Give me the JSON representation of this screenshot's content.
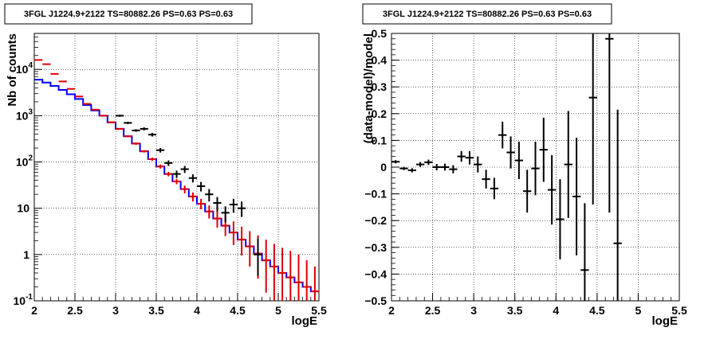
{
  "chart_data": [
    {
      "type": "line",
      "title": "3FGL J1224.9+2122 TS=80882.26 PS=0.63 PS=0.63",
      "xlabel": "logE",
      "ylabel": "Nb of counts",
      "xlim": [
        2,
        5.5
      ],
      "ylim": [
        0.1,
        60000
      ],
      "yscale": "log",
      "grid": true,
      "x_ticks": [
        "2",
        "2.5",
        "3",
        "3.5",
        "4",
        "4.5",
        "5",
        "5.5"
      ],
      "y_ticks": [
        {
          "base": "10",
          "exp": "-1"
        },
        {
          "base": "1",
          "exp": ""
        },
        {
          "base": "10",
          "exp": ""
        },
        {
          "base": "10",
          "exp": "2"
        },
        {
          "base": "10",
          "exp": "3"
        },
        {
          "base": "10",
          "exp": "4"
        }
      ],
      "bin_edges": [
        2.0,
        2.1,
        2.2,
        2.3,
        2.4,
        2.5,
        2.6,
        2.7,
        2.8,
        2.9,
        3.0,
        3.1,
        3.2,
        3.3,
        3.4,
        3.5,
        3.6,
        3.7,
        3.8,
        3.9,
        4.0,
        4.1,
        4.2,
        4.3,
        4.4,
        4.5,
        4.6,
        4.7,
        4.8,
        4.9,
        5.0,
        5.1,
        5.2,
        5.3,
        5.4,
        5.5
      ],
      "series": [
        {
          "style": "step",
          "color": "#0000ff",
          "values": [
            6000,
            5200,
            4400,
            3600,
            2900,
            2300,
            1700,
            1300,
            1000,
            720,
            520,
            360,
            250,
            170,
            115,
            80,
            55,
            38,
            26,
            18,
            12.5,
            8.5,
            6,
            4.2,
            3,
            2.1,
            1.5,
            1.05,
            0.75,
            0.55,
            0.4,
            0.32,
            0.25,
            0.2,
            0.16
          ]
        },
        {
          "style": "errorbar",
          "color": "#dd0000",
          "x": [
            2.05,
            2.15,
            2.25,
            2.35,
            2.45,
            2.55,
            2.65,
            2.75,
            2.85,
            2.95,
            3.05,
            3.15,
            3.25,
            3.35,
            3.45,
            3.55,
            3.65,
            3.75,
            3.85,
            3.95,
            4.05,
            4.15,
            4.25,
            4.35,
            4.45,
            4.55,
            4.65,
            4.75,
            4.85,
            4.95,
            5.05,
            5.15,
            5.25,
            5.35,
            5.45
          ],
          "y": [
            16000,
            13000,
            8000,
            5500,
            3800,
            2600,
            1800,
            1350,
            1000,
            720,
            520,
            360,
            250,
            170,
            115,
            80,
            55,
            38,
            26,
            18,
            12.5,
            8.5,
            6,
            4.2,
            3,
            2.1,
            1.5,
            1.05,
            0.75,
            0.55,
            0.4,
            0.32,
            0.25,
            0.2,
            0.16
          ],
          "y_low": [
            15800,
            12800,
            7900,
            5400,
            3700,
            2550,
            1750,
            1300,
            960,
            690,
            500,
            345,
            235,
            160,
            106,
            72,
            49,
            33,
            21,
            14,
            9.5,
            6,
            3.8,
            2.5,
            1.6,
            0.95,
            0.55,
            0.3,
            0.15,
            0.1,
            0.1,
            0.1,
            0.1,
            0.1,
            0.1
          ],
          "y_high": [
            16200,
            13200,
            8100,
            5600,
            3900,
            2650,
            1850,
            1400,
            1040,
            750,
            540,
            375,
            265,
            180,
            124,
            88,
            61,
            43,
            31,
            22,
            16,
            11.5,
            9,
            6.8,
            5.2,
            4,
            3.2,
            2.6,
            2.1,
            1.7,
            1.4,
            1.2,
            1.0,
            0.75,
            0.55
          ]
        },
        {
          "style": "errorbar",
          "color": "#000000",
          "x": [
            3.05,
            3.15,
            3.25,
            3.35,
            3.45,
            3.55,
            3.65,
            3.75,
            3.85,
            3.95,
            4.05,
            4.15,
            4.25,
            4.35,
            4.45,
            4.55,
            4.75
          ],
          "y": [
            1000,
            700,
            480,
            520,
            390,
            180,
            95,
            55,
            70,
            45,
            30,
            20,
            13,
            8,
            12,
            10,
            1
          ],
          "y_low": [
            950,
            660,
            450,
            480,
            355,
            160,
            82,
            45,
            58,
            36,
            23,
            14,
            8.5,
            5,
            8,
            6.5,
            0.35
          ],
          "y_high": [
            1050,
            740,
            510,
            560,
            425,
            200,
            108,
            65,
            82,
            54,
            37,
            26,
            17.5,
            11,
            16,
            14,
            2.2
          ]
        }
      ]
    },
    {
      "type": "scatter",
      "title": "3FGL J1224.9+2122 TS=80882.26 PS=0.63 PS=0.63",
      "xlabel": "logE",
      "ylabel": "(data-model)/model",
      "xlim": [
        2,
        5.5
      ],
      "ylim": [
        -0.5,
        0.5
      ],
      "grid": true,
      "x_ticks": [
        "2",
        "2.5",
        "3",
        "3.5",
        "4",
        "4.5",
        "5",
        "5.5"
      ],
      "y_ticks": [
        "−0.5",
        "−0.4",
        "−0.3",
        "−0.2",
        "−0.1",
        "0",
        "0.1",
        "0.2",
        "0.3",
        "0.4",
        "0.5"
      ],
      "points": [
        {
          "x": 2.05,
          "y": 0.02,
          "err": 0.006
        },
        {
          "x": 2.15,
          "y": -0.005,
          "err": 0.006
        },
        {
          "x": 2.25,
          "y": -0.012,
          "err": 0.008
        },
        {
          "x": 2.35,
          "y": 0.01,
          "err": 0.009
        },
        {
          "x": 2.45,
          "y": 0.018,
          "err": 0.01
        },
        {
          "x": 2.55,
          "y": 0.0,
          "err": 0.012
        },
        {
          "x": 2.65,
          "y": 0.0,
          "err": 0.013
        },
        {
          "x": 2.75,
          "y": -0.008,
          "err": 0.015
        },
        {
          "x": 2.85,
          "y": 0.04,
          "err": 0.02
        },
        {
          "x": 2.95,
          "y": 0.035,
          "err": 0.025
        },
        {
          "x": 3.05,
          "y": 0.01,
          "err": 0.03
        },
        {
          "x": 3.15,
          "y": -0.045,
          "err": 0.035
        },
        {
          "x": 3.25,
          "y": -0.08,
          "err": 0.04
        },
        {
          "x": 3.35,
          "y": 0.12,
          "err": 0.05
        },
        {
          "x": 3.45,
          "y": 0.055,
          "err": 0.06
        },
        {
          "x": 3.55,
          "y": 0.025,
          "err": 0.07
        },
        {
          "x": 3.65,
          "y": -0.09,
          "err": 0.08
        },
        {
          "x": 3.75,
          "y": -0.005,
          "err": 0.1
        },
        {
          "x": 3.85,
          "y": 0.065,
          "err": 0.12
        },
        {
          "x": 3.95,
          "y": -0.085,
          "err": 0.13
        },
        {
          "x": 4.05,
          "y": -0.195,
          "err": 0.15
        },
        {
          "x": 4.15,
          "y": 0.01,
          "err": 0.2
        },
        {
          "x": 4.25,
          "y": -0.11,
          "err": 0.22
        },
        {
          "x": 4.35,
          "y": -0.385,
          "err": 0.25
        },
        {
          "x": 4.45,
          "y": 0.26,
          "err": 0.4
        },
        {
          "x": 4.65,
          "y": 0.48,
          "err": 0.65
        },
        {
          "x": 4.75,
          "y": -0.285,
          "err": 0.5
        }
      ]
    }
  ]
}
